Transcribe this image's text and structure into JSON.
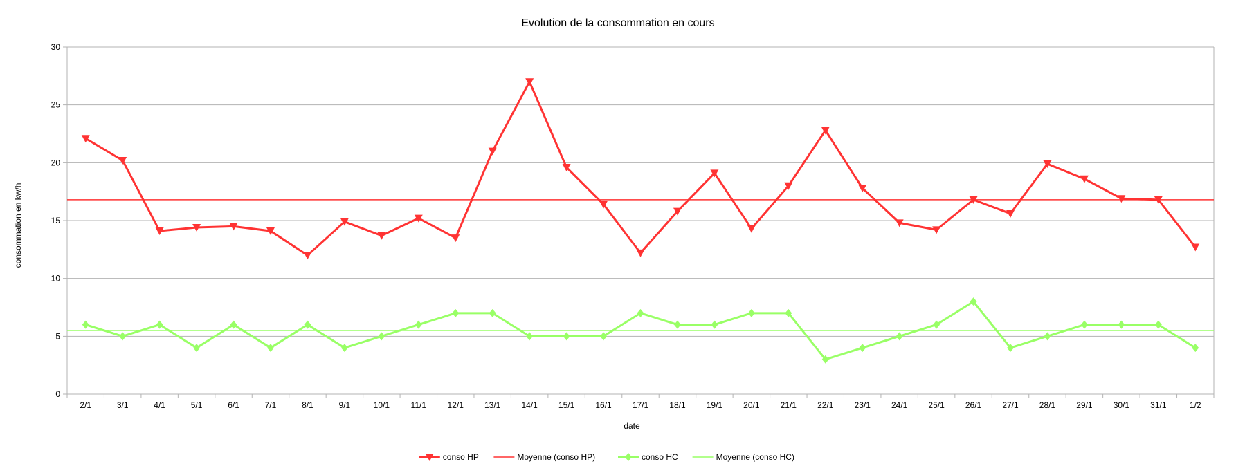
{
  "chart_data": {
    "type": "line",
    "title": "Evolution de la consommation en cours",
    "xlabel": "date",
    "ylabel": "consommation en kw/h",
    "ylim": [
      0,
      30
    ],
    "yticks": [
      0,
      5,
      10,
      15,
      20,
      25,
      30
    ],
    "grid": "horizontal",
    "legend_position": "bottom",
    "categories": [
      "2/1",
      "3/1",
      "4/1",
      "5/1",
      "6/1",
      "7/1",
      "8/1",
      "9/1",
      "10/1",
      "11/1",
      "12/1",
      "13/1",
      "14/1",
      "15/1",
      "16/1",
      "17/1",
      "18/1",
      "19/1",
      "20/1",
      "21/1",
      "22/1",
      "23/1",
      "24/1",
      "25/1",
      "26/1",
      "27/1",
      "28/1",
      "29/1",
      "30/1",
      "31/1",
      "1/2"
    ],
    "series": [
      {
        "name": "conso HP",
        "color": "#ff3333",
        "marker": "triangle-down",
        "values": [
          22.1,
          20.2,
          14.1,
          14.4,
          14.5,
          14.1,
          12.0,
          14.9,
          13.7,
          15.2,
          13.5,
          21.0,
          27.0,
          19.6,
          16.4,
          12.2,
          15.8,
          19.1,
          14.3,
          18.0,
          22.8,
          17.8,
          14.8,
          14.2,
          16.8,
          15.6,
          19.9,
          18.6,
          16.9,
          16.8,
          12.7
        ]
      },
      {
        "name": "Moyenne (conso HP)",
        "color": "#ff3333",
        "type": "average-line",
        "value": 16.8
      },
      {
        "name": "conso HC",
        "color": "#99ff66",
        "marker": "diamond",
        "values": [
          6,
          5,
          6,
          4,
          6,
          4,
          6,
          4,
          5,
          6,
          7,
          7,
          5,
          5,
          5,
          7,
          6,
          6,
          7,
          7,
          3,
          4,
          5,
          6,
          8,
          4,
          5,
          6,
          6,
          6,
          4
        ]
      },
      {
        "name": "Moyenne (conso HC)",
        "color": "#99ff66",
        "type": "average-line",
        "value": 5.5
      }
    ]
  }
}
